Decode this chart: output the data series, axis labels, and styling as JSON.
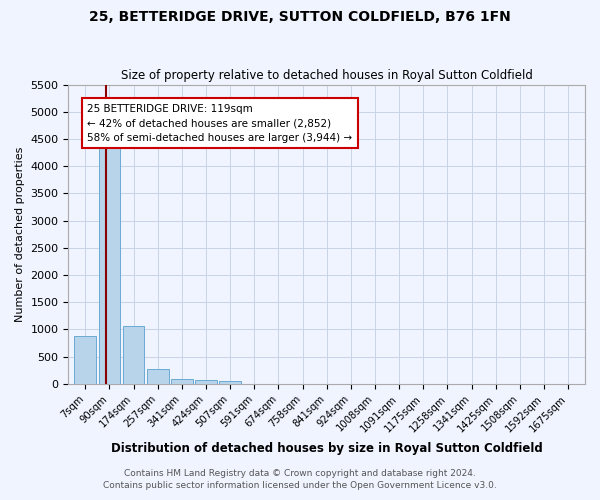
{
  "title": "25, BETTERIDGE DRIVE, SUTTON COLDFIELD, B76 1FN",
  "subtitle": "Size of property relative to detached houses in Royal Sutton Coldfield",
  "xlabel": "Distribution of detached houses by size in Royal Sutton Coldfield",
  "ylabel": "Number of detached properties",
  "footnote1": "Contains HM Land Registry data © Crown copyright and database right 2024.",
  "footnote2": "Contains public sector information licensed under the Open Government Licence v3.0.",
  "categories": [
    "7sqm",
    "90sqm",
    "174sqm",
    "257sqm",
    "341sqm",
    "424sqm",
    "507sqm",
    "591sqm",
    "674sqm",
    "758sqm",
    "841sqm",
    "924sqm",
    "1008sqm",
    "1091sqm",
    "1175sqm",
    "1258sqm",
    "1341sqm",
    "1425sqm",
    "1508sqm",
    "1592sqm",
    "1675sqm"
  ],
  "values": [
    870,
    4550,
    1060,
    270,
    90,
    70,
    55,
    0,
    0,
    0,
    0,
    0,
    0,
    0,
    0,
    0,
    0,
    0,
    0,
    0,
    0
  ],
  "ylim": [
    0,
    5500
  ],
  "yticks": [
    0,
    500,
    1000,
    1500,
    2000,
    2500,
    3000,
    3500,
    4000,
    4500,
    5000,
    5500
  ],
  "bar_color": "#b8d4ea",
  "bar_edge_color": "#6aaad4",
  "property_line_x": 0.85,
  "property_line_color": "#8b0000",
  "annotation_text": "25 BETTERIDGE DRIVE: 119sqm\n← 42% of detached houses are smaller (2,852)\n58% of semi-detached houses are larger (3,944) →",
  "annotation_box_color": "#ffffff",
  "annotation_box_edge": "#cc0000",
  "background_color": "#f0f4ff",
  "grid_color": "#c8d4e8"
}
